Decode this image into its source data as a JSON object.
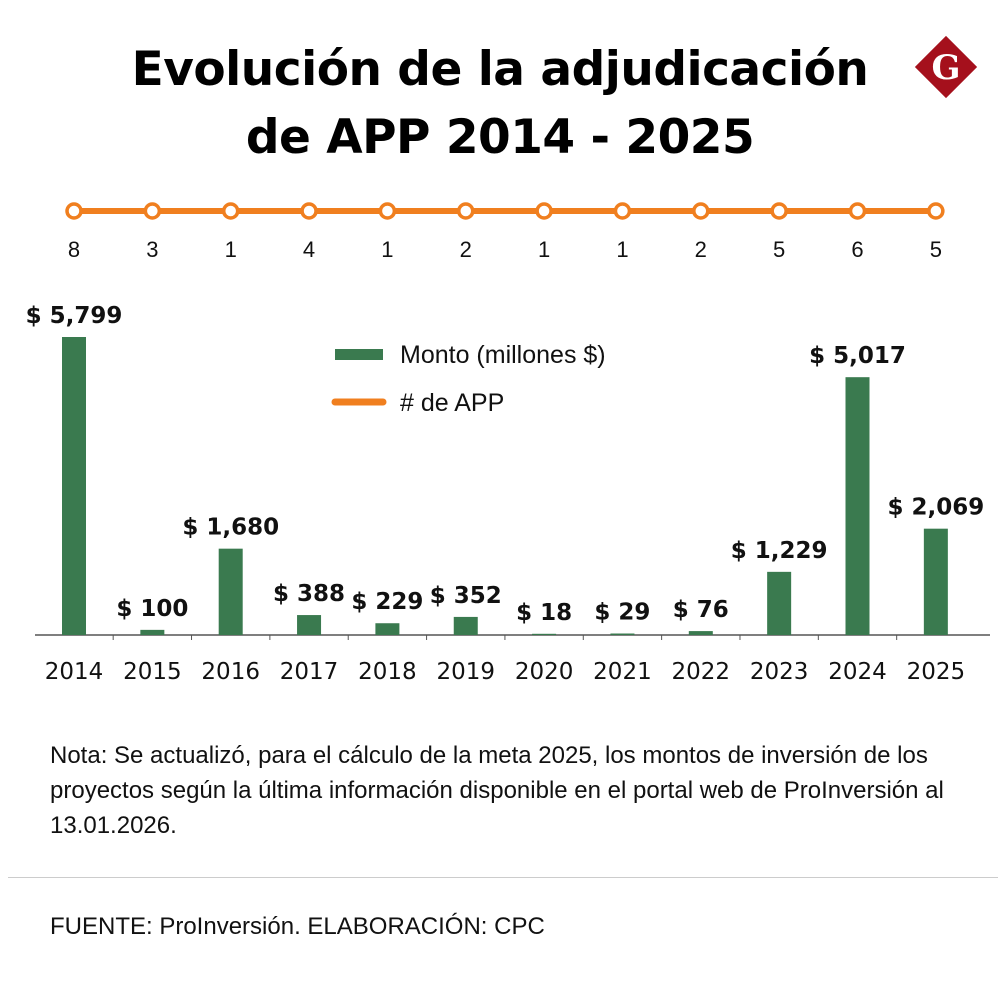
{
  "chart_data": {
    "type": "bar",
    "title_line1": "Evolución de la adjudicación",
    "title_line2": "de APP 2014 - 2025",
    "categories": [
      "2014",
      "2015",
      "2016",
      "2017",
      "2018",
      "2019",
      "2020",
      "2021",
      "2022",
      "2023",
      "2024",
      "2025"
    ],
    "series": [
      {
        "name": "Monto (millones $)",
        "type": "bar",
        "color": "#3a7a4f",
        "values": [
          5799,
          100,
          1680,
          388,
          229,
          352,
          18,
          29,
          76,
          1229,
          5017,
          2069
        ],
        "labels": [
          "$ 5,799",
          "$ 100",
          "$ 1,680",
          "$ 388",
          "$ 229",
          "$ 352",
          "$ 18",
          "$ 29",
          "$ 76",
          "$ 1,229",
          "$ 5,017",
          "$ 2,069"
        ]
      },
      {
        "name": "# de APP",
        "type": "line",
        "color": "#f07f1f",
        "values": [
          8,
          3,
          1,
          4,
          1,
          2,
          1,
          1,
          2,
          5,
          6,
          5
        ]
      }
    ],
    "legend_position": "top-center",
    "grid": false
  },
  "note": "Nota: Se actualizó, para el cálculo de la meta 2025, los montos de inversión de los proyectos según la última información disponible en el portal web de ProInversión al 13.01.2026.",
  "source": "FUENTE: ProInversión. ELABORACIÓN: CPC",
  "logo": {
    "letter": "G",
    "color": "#a5101c"
  }
}
